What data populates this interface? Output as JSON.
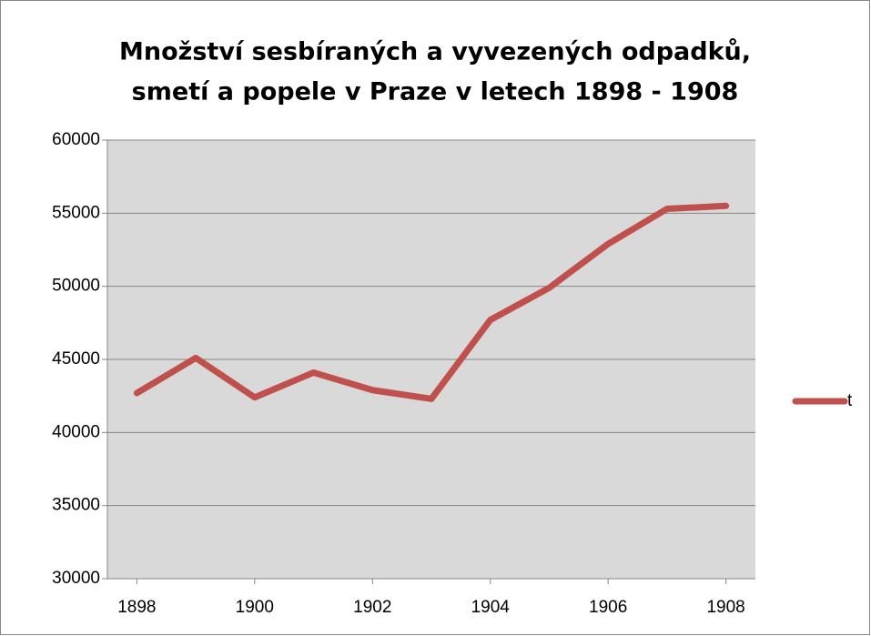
{
  "chart_data": {
    "type": "line",
    "title": [
      "Množství sesbíraných a vyvezených odpadků,",
      "smetí a popele v Praze v letech 1898 - 1908"
    ],
    "x": [
      1898,
      1899,
      1900,
      1901,
      1902,
      1903,
      1904,
      1905,
      1906,
      1907,
      1908
    ],
    "series": [
      {
        "name": "t",
        "color": "#c0504d",
        "values": [
          42700,
          45100,
          42400,
          44100,
          42900,
          42300,
          47700,
          49900,
          52900,
          55300,
          55500
        ]
      }
    ],
    "xlim": [
      1897.5,
      1908.5
    ],
    "xticks": [
      1898,
      1900,
      1902,
      1904,
      1906,
      1908
    ],
    "ylim": [
      30000,
      60000
    ],
    "yticks": [
      30000,
      35000,
      40000,
      45000,
      50000,
      55000,
      60000
    ],
    "grid": true,
    "legend": "right"
  }
}
